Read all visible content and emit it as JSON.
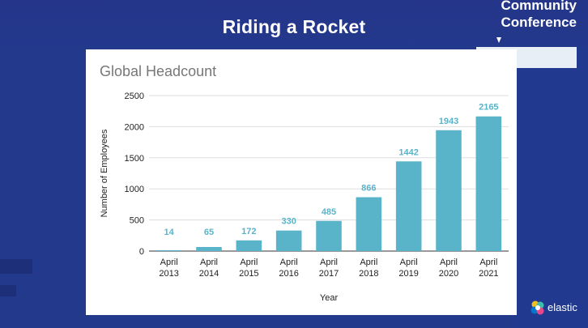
{
  "slide": {
    "title": "Riding a Rocket",
    "brand_line1": "Community",
    "brand_line2": "Conference",
    "logo_text": "elastic"
  },
  "colors": {
    "bar": "#5ab4c9",
    "label": "#5ab4c9",
    "background": "#233a8c"
  },
  "chart_data": {
    "type": "bar",
    "title": "Global Headcount",
    "xlabel": "Year",
    "ylabel": "Number of Employees",
    "categories": [
      "April 2013",
      "April 2014",
      "April 2015",
      "April 2016",
      "April 2017",
      "April 2018",
      "April 2019",
      "April 2020",
      "April 2021"
    ],
    "values": [
      14,
      65,
      172,
      330,
      485,
      866,
      1442,
      1943,
      2165
    ],
    "ylim": [
      0,
      2500
    ],
    "yticks": [
      0,
      500,
      1000,
      1500,
      2000,
      2500
    ],
    "grid": true,
    "legend": "none"
  }
}
